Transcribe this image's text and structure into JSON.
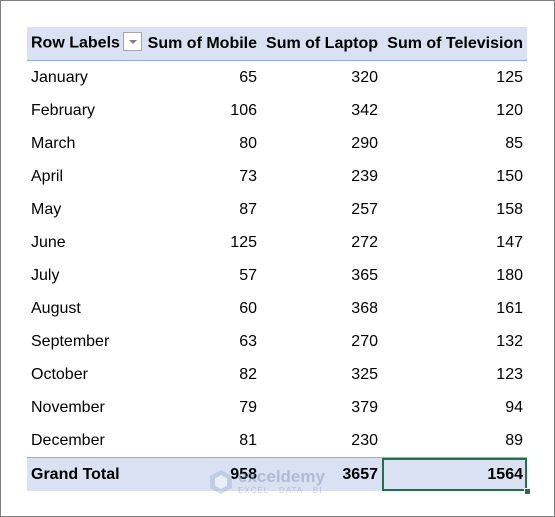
{
  "pivot": {
    "headers": {
      "row_labels": "Row Labels",
      "mobile": "Sum of Mobile",
      "laptop": "Sum of Laptop",
      "television": "Sum of Television"
    },
    "rows": [
      {
        "label": "January",
        "mobile": "65",
        "laptop": "320",
        "television": "125"
      },
      {
        "label": "February",
        "mobile": "106",
        "laptop": "342",
        "television": "120"
      },
      {
        "label": "March",
        "mobile": "80",
        "laptop": "290",
        "television": "85"
      },
      {
        "label": "April",
        "mobile": "73",
        "laptop": "239",
        "television": "150"
      },
      {
        "label": "May",
        "mobile": "87",
        "laptop": "257",
        "television": "158"
      },
      {
        "label": "June",
        "mobile": "125",
        "laptop": "272",
        "television": "147"
      },
      {
        "label": "July",
        "mobile": "57",
        "laptop": "365",
        "television": "180"
      },
      {
        "label": "August",
        "mobile": "60",
        "laptop": "368",
        "television": "161"
      },
      {
        "label": "September",
        "mobile": "63",
        "laptop": "270",
        "television": "132"
      },
      {
        "label": "October",
        "mobile": "82",
        "laptop": "325",
        "television": "123"
      },
      {
        "label": "November",
        "mobile": "79",
        "laptop": "379",
        "television": "94"
      },
      {
        "label": "December",
        "mobile": "81",
        "laptop": "230",
        "television": "89"
      }
    ],
    "grand_total": {
      "label": "Grand Total",
      "mobile": "958",
      "laptop": "3657",
      "television": "1564"
    },
    "colors": {
      "header_fill": "#d9e1f2",
      "selection": "#217346"
    }
  },
  "watermark": {
    "name": "exceldemy",
    "tagline": "EXCEL · DATA · BI"
  }
}
